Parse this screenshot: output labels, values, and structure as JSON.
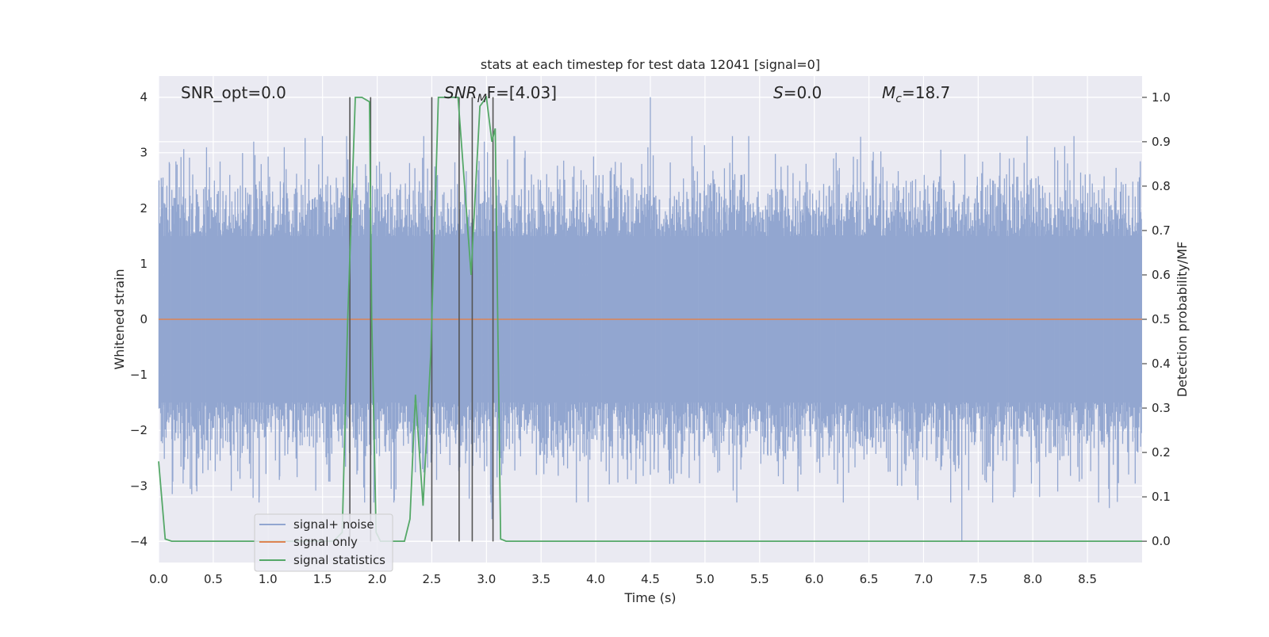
{
  "chart_data": {
    "type": "line",
    "title": "stats at each timestep for test data 12041 [signal=0]",
    "xlabel": "Time (s)",
    "ylabel": "Whitened strain",
    "y2label": "Detection probability/MF",
    "xlim": [
      0,
      9.0
    ],
    "ylim": [
      -4.38,
      4.38
    ],
    "y2lim": [
      -0.048,
      1.048
    ],
    "xticks": [
      "0.0",
      "0.5",
      "1.0",
      "1.5",
      "2.0",
      "2.5",
      "3.0",
      "3.5",
      "4.0",
      "4.5",
      "5.0",
      "5.5",
      "6.0",
      "6.5",
      "7.0",
      "7.5",
      "8.0",
      "8.5"
    ],
    "yticks": [
      "4",
      "3",
      "2",
      "1",
      "0",
      "−1",
      "−2",
      "−3",
      "−4"
    ],
    "y2ticks": [
      "1.0",
      "0.9",
      "0.8",
      "0.7",
      "0.6",
      "0.5",
      "0.4",
      "0.3",
      "0.2",
      "0.1",
      "0.0"
    ],
    "grid": true,
    "legend_position": "lower-left",
    "annotations": {
      "snr_opt": "SNR_opt=0.0",
      "snr_mf_main": "SNR",
      "snr_mf_sub": "M",
      "snr_mf_rest": "F=[4.03]",
      "s_main": "S",
      "s_rest": "=0.0",
      "mc_main": "M",
      "mc_sub": "c",
      "mc_rest": "=18.7"
    },
    "series": [
      {
        "name": "signal+ noise",
        "color": "#92a6d0",
        "description_values": "dense whitened strain noise, amplitude envelope approx ±1.5 with spikes up to ±4",
        "envelope_typical": 1.5,
        "peak_values": [
          {
            "x": 0.1,
            "y": 2.8
          },
          {
            "x": 0.13,
            "y": -2.2
          },
          {
            "x": 0.35,
            "y": -3.1
          },
          {
            "x": 0.87,
            "y": 3.2
          },
          {
            "x": 0.92,
            "y": -3.2
          },
          {
            "x": 1.15,
            "y": 3.1
          },
          {
            "x": 1.72,
            "y": 3.3
          },
          {
            "x": 1.97,
            "y": -3.3
          },
          {
            "x": 2.98,
            "y": 3.2
          },
          {
            "x": 3.05,
            "y": -3.6
          },
          {
            "x": 4.5,
            "y": 4.0
          },
          {
            "x": 4.5,
            "y": -2.8
          },
          {
            "x": 5.4,
            "y": 3.3
          },
          {
            "x": 5.85,
            "y": -3.1
          },
          {
            "x": 6.8,
            "y": -3.0
          },
          {
            "x": 7.35,
            "y": -4.0
          },
          {
            "x": 8.2,
            "y": 3.1
          },
          {
            "x": 8.7,
            "y": -3.4
          },
          {
            "x": 7.7,
            "y": 3.0
          },
          {
            "x": 6.2,
            "y": 3.0
          }
        ]
      },
      {
        "name": "signal only",
        "color": "#dd8452",
        "x": [
          0,
          9.0
        ],
        "y": [
          0,
          0
        ]
      },
      {
        "name": "signal statistics",
        "color": "#55a868",
        "axis": "right",
        "x": [
          0,
          0.06,
          0.12,
          1.6,
          1.68,
          1.73,
          1.8,
          1.86,
          1.93,
          1.95,
          1.99,
          2.03,
          2.07,
          2.25,
          2.3,
          2.35,
          2.42,
          2.49,
          2.56,
          2.62,
          2.74,
          2.8,
          2.86,
          2.88,
          2.94,
          3.0,
          3.05,
          3.08,
          3.13,
          3.18,
          9.0
        ],
        "y": [
          0.18,
          0.005,
          0.0,
          0.0,
          0.02,
          0.5,
          1.0,
          1.0,
          0.99,
          0.5,
          0.02,
          0.0,
          0.0,
          0.0,
          0.05,
          0.33,
          0.08,
          0.42,
          1.0,
          1.0,
          1.0,
          0.8,
          0.6,
          0.7,
          0.98,
          1.0,
          0.9,
          0.93,
          0.005,
          0.0,
          0.0
        ]
      }
    ],
    "vertical_lines": {
      "color": "#555555",
      "x": [
        1.75,
        1.94,
        2.5,
        2.75,
        2.87,
        3.06
      ],
      "y_top": 4.0,
      "y_bottom": -4.0
    }
  }
}
